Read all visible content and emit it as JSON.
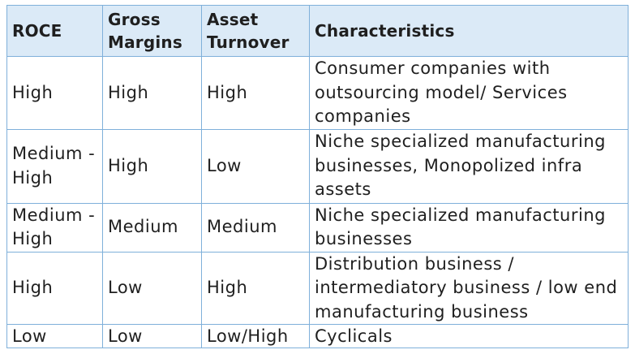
{
  "table": {
    "headers": [
      "ROCE",
      "Gross Margins",
      "Asset Turnover",
      "Characteristics"
    ],
    "rows": [
      [
        "High",
        "High",
        "High",
        "Consumer companies with outsourcing model/ Services companies"
      ],
      [
        "Medium - High",
        "High",
        "Low",
        "Niche specialized manufacturing businesses, Monopolized infra assets"
      ],
      [
        "Medium - High",
        "Medium",
        "Medium",
        "Niche specialized manufacturing businesses"
      ],
      [
        "High",
        "Low",
        "High",
        "Distribution business / intermediatory business / low end manufacturing business"
      ],
      [
        "Low",
        "Low",
        "Low/High",
        "Cyclicals"
      ]
    ]
  },
  "colors": {
    "header_background": "#dbeaf7",
    "border": "#7fb0da",
    "text": "#1f1f1f"
  }
}
